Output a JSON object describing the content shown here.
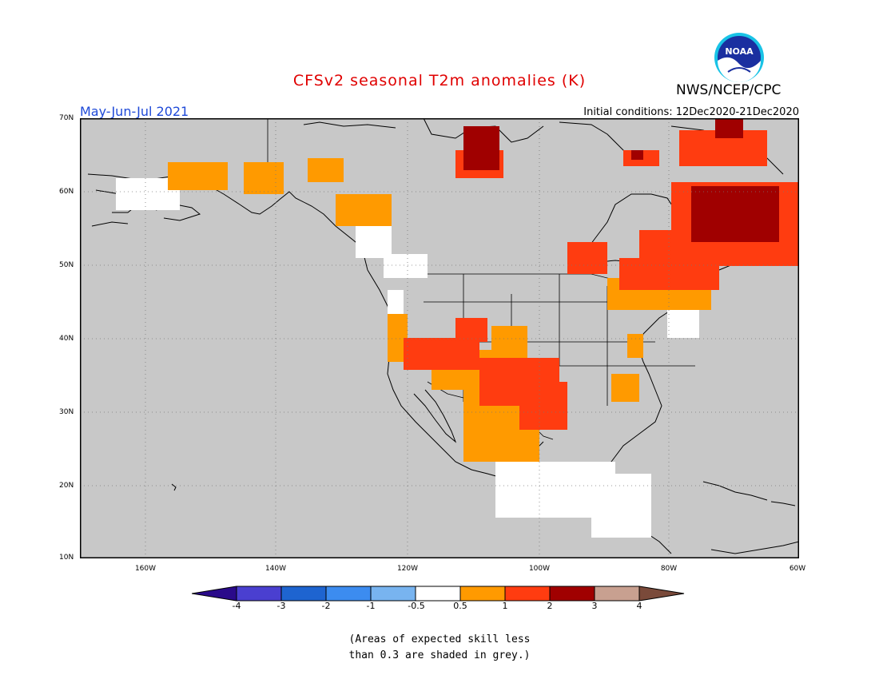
{
  "header": {
    "title": "CFSv2 seasonal T2m anomalies (K)",
    "org": "NWS/NCEP/CPC",
    "season": "May-Jun-Jul 2021",
    "initial_conditions": "Initial conditions: 12Dec2020-21Dec2020",
    "logo_text": "NOAA"
  },
  "map": {
    "lat_labels": [
      "70N",
      "60N",
      "50N",
      "40N",
      "30N",
      "20N",
      "10N"
    ],
    "lon_labels": [
      "160W",
      "140W",
      "120W",
      "100W",
      "80W",
      "60W"
    ],
    "background_color": "#c8c8c8",
    "region_colors": {
      "neutral": "#ffffff",
      "warm_0_5_1": "#ff9a00",
      "warm_1_2": "#ff3c10",
      "warm_2_3": "#a00000"
    }
  },
  "colorbar": {
    "labels": [
      "-4",
      "-3",
      "-2",
      "-1",
      "-0.5",
      "0.5",
      "1",
      "2",
      "3",
      "4"
    ],
    "colors": [
      "#2a0a8a",
      "#4a3fd0",
      "#1e64d0",
      "#3c8cf0",
      "#78b4f0",
      "#ffffff",
      "#ff9a00",
      "#ff3c10",
      "#a00000",
      "#c8a090",
      "#7a4a3a"
    ]
  },
  "note": {
    "line1": "(Areas of expected skill less",
    "line2": "than 0.3 are shaded in grey.)"
  }
}
